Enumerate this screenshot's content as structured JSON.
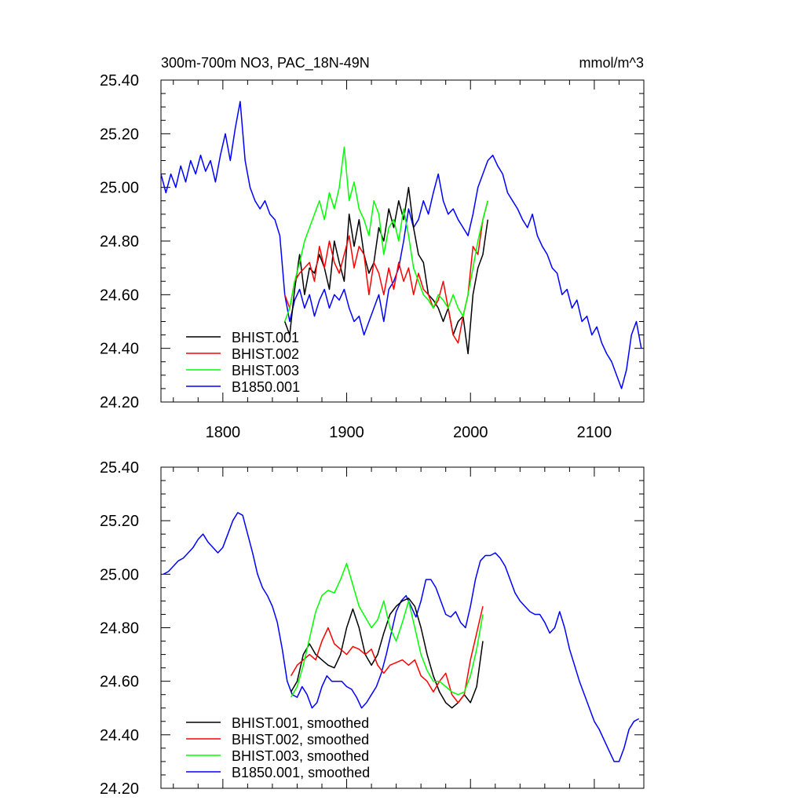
{
  "title_left": "300m-700m NO3, PAC_18N-49N",
  "title_right": "mmol/m^3",
  "colors": {
    "BHIST.001": "#000000",
    "BHIST.002": "#ff0000",
    "BHIST.003": "#00ff00",
    "B1850.001": "#0000ff"
  },
  "chart_data": [
    {
      "type": "line",
      "xlim": [
        1750,
        2140
      ],
      "ylim": [
        24.2,
        25.4
      ],
      "x_ticks": [
        "1800",
        "1900",
        "2000",
        "2100"
      ],
      "y_ticks": [
        "25.40",
        "25.20",
        "25.00",
        "24.80",
        "24.60",
        "24.40",
        "24.20"
      ],
      "legend_position": "lower-left",
      "series": [
        {
          "name": "BHIST.001",
          "x": [
            1850,
            1854,
            1858,
            1862,
            1866,
            1870,
            1874,
            1878,
            1882,
            1886,
            1890,
            1894,
            1898,
            1902,
            1906,
            1910,
            1914,
            1918,
            1922,
            1926,
            1930,
            1934,
            1938,
            1942,
            1946,
            1950,
            1954,
            1958,
            1962,
            1966,
            1970,
            1974,
            1978,
            1982,
            1986,
            1990,
            1994,
            1998,
            2002,
            2006,
            2010,
            2014
          ],
          "y": [
            24.5,
            24.45,
            24.62,
            24.75,
            24.6,
            24.7,
            24.68,
            24.75,
            24.7,
            24.62,
            24.8,
            24.72,
            24.65,
            24.9,
            24.78,
            24.88,
            24.75,
            24.68,
            24.72,
            24.85,
            24.8,
            24.92,
            24.85,
            24.95,
            24.88,
            25.0,
            24.85,
            24.75,
            24.72,
            24.6,
            24.58,
            24.55,
            24.5,
            24.55,
            24.45,
            24.5,
            24.52,
            24.38,
            24.6,
            24.7,
            24.75,
            24.88
          ]
        },
        {
          "name": "BHIST.002",
          "x": [
            1850,
            1854,
            1858,
            1862,
            1866,
            1870,
            1874,
            1878,
            1882,
            1886,
            1890,
            1894,
            1898,
            1902,
            1906,
            1910,
            1914,
            1918,
            1922,
            1926,
            1930,
            1934,
            1938,
            1942,
            1946,
            1950,
            1954,
            1958,
            1962,
            1966,
            1970,
            1974,
            1978,
            1982,
            1986,
            1990,
            1994,
            1998,
            2002,
            2006,
            2010,
            2014
          ],
          "y": [
            24.6,
            24.55,
            24.65,
            24.68,
            24.7,
            24.72,
            24.65,
            24.78,
            24.7,
            24.8,
            24.72,
            24.68,
            24.75,
            24.82,
            24.7,
            24.78,
            24.75,
            24.6,
            24.72,
            24.68,
            24.6,
            24.7,
            24.62,
            24.72,
            24.65,
            24.7,
            24.6,
            24.68,
            24.62,
            24.6,
            24.55,
            24.58,
            24.65,
            24.55,
            24.45,
            24.42,
            24.52,
            24.6,
            24.78,
            24.75,
            24.88,
            24.95
          ]
        },
        {
          "name": "BHIST.003",
          "x": [
            1850,
            1854,
            1858,
            1862,
            1866,
            1870,
            1874,
            1878,
            1882,
            1886,
            1890,
            1894,
            1898,
            1902,
            1906,
            1910,
            1914,
            1918,
            1922,
            1926,
            1930,
            1934,
            1938,
            1942,
            1946,
            1950,
            1954,
            1958,
            1962,
            1966,
            1970,
            1974,
            1978,
            1982,
            1986,
            1990,
            1994,
            1998,
            2002,
            2006,
            2010,
            2014
          ],
          "y": [
            24.5,
            24.55,
            24.65,
            24.72,
            24.8,
            24.85,
            24.9,
            24.95,
            24.88,
            24.98,
            24.92,
            25.0,
            25.15,
            24.95,
            25.02,
            24.92,
            24.88,
            24.82,
            24.95,
            24.9,
            24.75,
            24.85,
            24.88,
            24.8,
            24.92,
            24.82,
            24.7,
            24.65,
            24.6,
            24.58,
            24.55,
            24.6,
            24.58,
            24.55,
            24.6,
            24.55,
            24.52,
            24.6,
            24.7,
            24.8,
            24.88,
            24.95
          ]
        },
        {
          "name": "B1850.001",
          "x": [
            1750,
            1754,
            1758,
            1762,
            1766,
            1770,
            1774,
            1778,
            1782,
            1786,
            1790,
            1794,
            1798,
            1802,
            1806,
            1810,
            1814,
            1818,
            1822,
            1826,
            1830,
            1834,
            1838,
            1842,
            1846,
            1850,
            1854,
            1858,
            1862,
            1866,
            1870,
            1874,
            1878,
            1882,
            1886,
            1890,
            1894,
            1898,
            1902,
            1906,
            1910,
            1914,
            1918,
            1922,
            1926,
            1930,
            1934,
            1938,
            1942,
            1946,
            1950,
            1954,
            1958,
            1962,
            1966,
            1970,
            1974,
            1978,
            1982,
            1986,
            1990,
            1994,
            1998,
            2002,
            2006,
            2010,
            2014,
            2018,
            2022,
            2026,
            2030,
            2034,
            2038,
            2042,
            2046,
            2050,
            2054,
            2058,
            2062,
            2066,
            2070,
            2074,
            2078,
            2082,
            2086,
            2090,
            2094,
            2098,
            2102,
            2106,
            2110,
            2114,
            2118,
            2122,
            2126,
            2130,
            2134,
            2138
          ],
          "y": [
            25.05,
            24.98,
            25.05,
            25.0,
            25.08,
            25.02,
            25.1,
            25.05,
            25.12,
            25.06,
            25.1,
            25.02,
            25.12,
            25.2,
            25.1,
            25.22,
            25.32,
            25.1,
            25.0,
            24.95,
            24.92,
            24.95,
            24.9,
            24.88,
            24.82,
            24.6,
            24.5,
            24.58,
            24.62,
            24.55,
            24.6,
            24.52,
            24.58,
            24.62,
            24.55,
            24.6,
            24.58,
            24.62,
            24.55,
            24.5,
            24.52,
            24.45,
            24.5,
            24.55,
            24.6,
            24.5,
            24.62,
            24.65,
            24.7,
            24.8,
            24.92,
            24.85,
            24.88,
            24.95,
            24.9,
            24.98,
            25.05,
            24.95,
            24.9,
            24.92,
            24.88,
            24.85,
            24.82,
            24.9,
            25.0,
            25.05,
            25.1,
            25.12,
            25.08,
            25.05,
            24.98,
            24.95,
            24.92,
            24.88,
            24.85,
            24.9,
            24.82,
            24.78,
            24.75,
            24.7,
            24.68,
            24.6,
            24.62,
            24.55,
            24.58,
            24.5,
            24.52,
            24.45,
            24.48,
            24.42,
            24.38,
            24.35,
            24.3,
            24.25,
            24.32,
            24.45,
            24.5,
            24.4
          ]
        }
      ]
    },
    {
      "type": "line",
      "xlim": [
        1750,
        2140
      ],
      "ylim": [
        24.2,
        25.4
      ],
      "x_ticks": [],
      "y_ticks": [
        "25.40",
        "25.20",
        "25.00",
        "24.80",
        "24.60",
        "24.40",
        "24.20"
      ],
      "legend_position": "lower-left",
      "series": [
        {
          "name": "BHIST.001, smoothed",
          "x": [
            1855,
            1860,
            1865,
            1870,
            1875,
            1880,
            1885,
            1890,
            1895,
            1900,
            1905,
            1910,
            1915,
            1920,
            1925,
            1930,
            1935,
            1940,
            1945,
            1950,
            1955,
            1960,
            1965,
            1970,
            1975,
            1980,
            1985,
            1990,
            1995,
            2000,
            2005,
            2010
          ],
          "y": [
            24.56,
            24.6,
            24.7,
            24.74,
            24.7,
            24.68,
            24.66,
            24.65,
            24.7,
            24.8,
            24.87,
            24.8,
            24.7,
            24.66,
            24.7,
            24.78,
            24.85,
            24.88,
            24.9,
            24.91,
            24.88,
            24.8,
            24.7,
            24.62,
            24.56,
            24.52,
            24.5,
            24.52,
            24.55,
            24.52,
            24.58,
            24.75
          ]
        },
        {
          "name": "BHIST.002, smoothed",
          "x": [
            1855,
            1860,
            1865,
            1870,
            1875,
            1880,
            1885,
            1890,
            1895,
            1900,
            1905,
            1910,
            1915,
            1920,
            1925,
            1930,
            1935,
            1940,
            1945,
            1950,
            1955,
            1960,
            1965,
            1970,
            1975,
            1980,
            1985,
            1990,
            1995,
            2000,
            2005,
            2010
          ],
          "y": [
            24.62,
            24.66,
            24.68,
            24.7,
            24.68,
            24.75,
            24.8,
            24.74,
            24.72,
            24.7,
            24.73,
            24.72,
            24.7,
            24.72,
            24.66,
            24.63,
            24.66,
            24.67,
            24.68,
            24.66,
            24.68,
            24.62,
            24.6,
            24.56,
            24.6,
            24.63,
            24.55,
            24.52,
            24.55,
            24.68,
            24.78,
            24.88
          ]
        },
        {
          "name": "BHIST.003, smoothed",
          "x": [
            1855,
            1860,
            1865,
            1870,
            1875,
            1880,
            1885,
            1890,
            1895,
            1900,
            1905,
            1910,
            1915,
            1920,
            1925,
            1930,
            1935,
            1940,
            1945,
            1950,
            1955,
            1960,
            1965,
            1970,
            1975,
            1980,
            1985,
            1990,
            1995,
            2000,
            2005,
            2010
          ],
          "y": [
            24.54,
            24.58,
            24.66,
            24.76,
            24.86,
            24.92,
            24.94,
            24.93,
            24.98,
            25.04,
            24.96,
            24.88,
            24.84,
            24.8,
            24.83,
            24.9,
            24.8,
            24.75,
            24.82,
            24.9,
            24.8,
            24.7,
            24.64,
            24.6,
            24.6,
            24.58,
            24.56,
            24.55,
            24.56,
            24.62,
            24.72,
            24.85
          ]
        },
        {
          "name": "B1850.001, smoothed",
          "x": [
            1752,
            1756,
            1760,
            1764,
            1768,
            1772,
            1776,
            1780,
            1784,
            1788,
            1792,
            1796,
            1800,
            1804,
            1808,
            1812,
            1816,
            1820,
            1824,
            1828,
            1832,
            1836,
            1840,
            1844,
            1848,
            1852,
            1856,
            1860,
            1864,
            1868,
            1872,
            1876,
            1880,
            1884,
            1888,
            1892,
            1896,
            1900,
            1904,
            1908,
            1912,
            1916,
            1920,
            1924,
            1928,
            1932,
            1936,
            1940,
            1944,
            1948,
            1952,
            1956,
            1960,
            1964,
            1968,
            1972,
            1976,
            1980,
            1984,
            1988,
            1992,
            1996,
            2000,
            2004,
            2008,
            2012,
            2016,
            2020,
            2024,
            2028,
            2032,
            2036,
            2040,
            2044,
            2048,
            2052,
            2056,
            2060,
            2064,
            2068,
            2072,
            2076,
            2080,
            2084,
            2088,
            2092,
            2096,
            2100,
            2104,
            2108,
            2112,
            2116,
            2120,
            2124,
            2128,
            2132,
            2136
          ],
          "y": [
            25.0,
            25.01,
            25.03,
            25.05,
            25.06,
            25.08,
            25.1,
            25.13,
            25.15,
            25.12,
            25.1,
            25.08,
            25.1,
            25.15,
            25.2,
            25.23,
            25.22,
            25.15,
            25.08,
            25.0,
            24.95,
            24.92,
            24.88,
            24.82,
            24.72,
            24.6,
            24.55,
            24.54,
            24.58,
            24.55,
            24.5,
            24.52,
            24.58,
            24.62,
            24.6,
            24.6,
            24.6,
            24.58,
            24.57,
            24.54,
            24.5,
            24.52,
            24.55,
            24.58,
            24.63,
            24.7,
            24.78,
            24.86,
            24.9,
            24.92,
            24.88,
            24.84,
            24.9,
            24.98,
            24.98,
            24.95,
            24.9,
            24.85,
            24.84,
            24.86,
            24.82,
            24.8,
            24.88,
            24.98,
            25.05,
            25.07,
            25.07,
            25.08,
            25.06,
            25.03,
            24.98,
            24.93,
            24.9,
            24.88,
            24.86,
            24.85,
            24.85,
            24.82,
            24.78,
            24.8,
            24.86,
            24.8,
            24.72,
            24.66,
            24.6,
            24.55,
            24.5,
            24.45,
            24.42,
            24.38,
            24.34,
            24.3,
            24.3,
            24.35,
            24.42,
            24.45,
            24.46
          ]
        }
      ]
    }
  ]
}
